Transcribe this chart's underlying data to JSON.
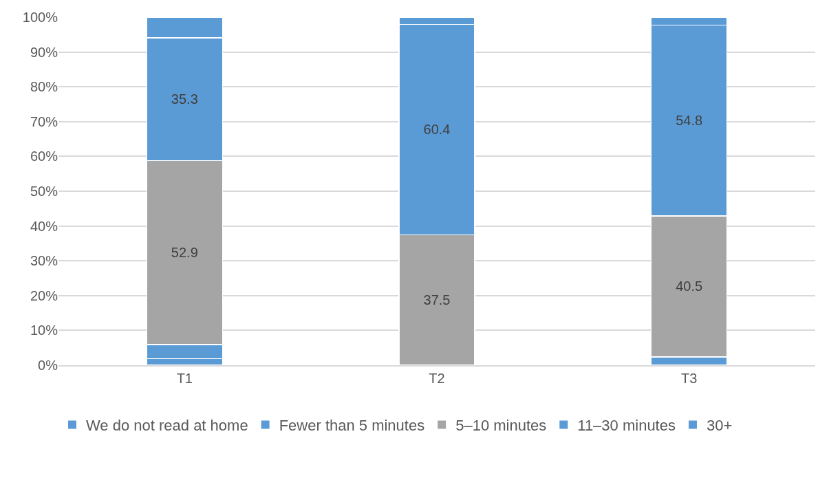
{
  "chart_data": {
    "type": "bar",
    "stacked": true,
    "categories": [
      "T1",
      "T2",
      "T3"
    ],
    "series": [
      {
        "name": "We do not read at home",
        "color": "#5b9bd5",
        "values": [
          1.9,
          0,
          2.4
        ],
        "value_labels": [
          null,
          null,
          null
        ]
      },
      {
        "name": "Fewer than 5 minutes",
        "color": "#5b9bd5",
        "values": [
          4.0,
          0,
          0
        ],
        "value_labels": [
          null,
          null,
          null
        ]
      },
      {
        "name": "5–10 minutes",
        "color": "#a5a5a5",
        "values": [
          52.9,
          37.5,
          40.5
        ],
        "value_labels": [
          "52.9",
          "37.5",
          "40.5"
        ]
      },
      {
        "name": "11–30 minutes",
        "color": "#5b9bd5",
        "values": [
          35.3,
          60.4,
          54.8
        ],
        "value_labels": [
          "35.3",
          "60.4",
          "54.8"
        ]
      },
      {
        "name": "30+",
        "color": "#5b9bd5",
        "values": [
          5.9,
          2.1,
          2.3
        ],
        "value_labels": [
          null,
          null,
          null
        ]
      }
    ],
    "ylim": [
      0,
      100
    ],
    "yticks": [
      {
        "value": 0,
        "label": "0%"
      },
      {
        "value": 10,
        "label": "10%"
      },
      {
        "value": 20,
        "label": "20%"
      },
      {
        "value": 30,
        "label": "30%"
      },
      {
        "value": 40,
        "label": "40%"
      },
      {
        "value": 50,
        "label": "50%"
      },
      {
        "value": 60,
        "label": "60%"
      },
      {
        "value": 70,
        "label": "70%"
      },
      {
        "value": 80,
        "label": "80%"
      },
      {
        "value": 90,
        "label": "90%"
      },
      {
        "value": 100,
        "label": "100%"
      }
    ],
    "grid": "y",
    "legend": "bottom"
  }
}
